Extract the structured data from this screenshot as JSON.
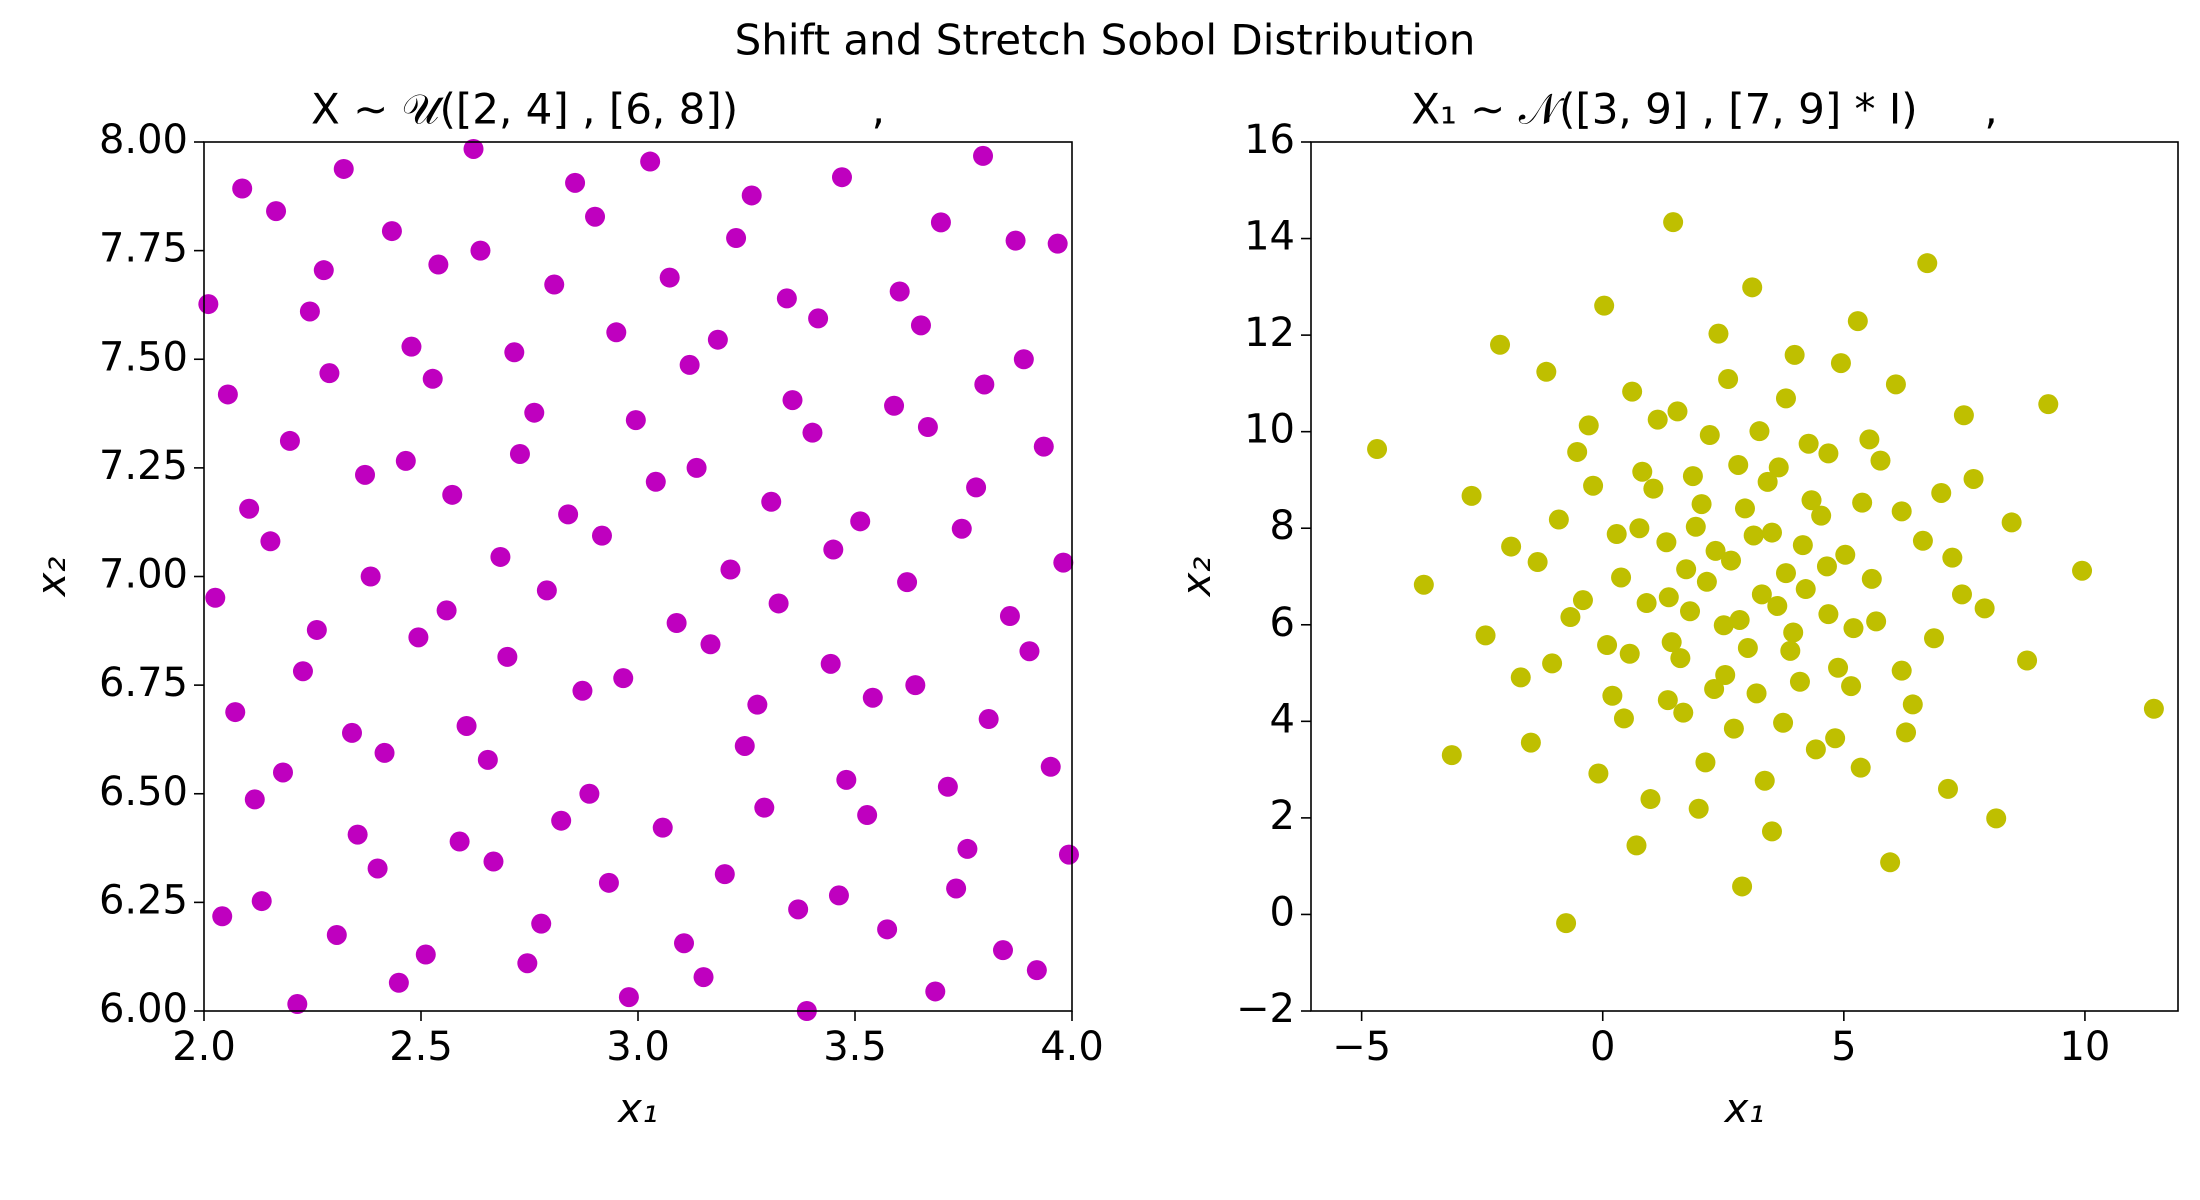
{
  "title": "Shift and Stretch Sobol Distribution",
  "chart_data": [
    {
      "type": "scatter",
      "title": "X ∼ 𝒰([2, 4] , [6, 8])          ,",
      "xlabel": "x₁",
      "ylabel": "x₂",
      "color": "#bf00bf",
      "xlim": [
        2.0,
        4.0
      ],
      "ylim": [
        6.0,
        8.0
      ],
      "xticks": [
        {
          "value": 2.0,
          "label": "2.0"
        },
        2.5,
        {
          "value": 3.0,
          "label": "3.0"
        },
        3.5,
        {
          "value": 4.0,
          "label": "4.0"
        }
      ],
      "yticks": [
        {
          "value": 6.0,
          "label": "6.00"
        },
        6.25,
        {
          "value": 6.5,
          "label": "6.50"
        },
        6.75,
        {
          "value": 7.0,
          "label": "7.00"
        },
        7.25,
        {
          "value": 7.5,
          "label": "7.50"
        },
        7.75,
        {
          "value": 8.0,
          "label": "8.00"
        }
      ],
      "x": [
        2.01,
        2.088,
        2.166,
        2.322,
        2.621,
        2.855,
        3.028,
        3.262,
        3.47,
        3.795,
        3.698,
        2.901,
        2.276,
        2.433,
        2.54,
        2.637,
        2.807,
        3.073,
        3.226,
        3.87,
        3.967,
        2.055,
        2.244,
        2.289,
        2.478,
        2.527,
        2.715,
        2.95,
        3.119,
        3.184,
        3.343,
        3.415,
        3.603,
        3.652,
        3.798,
        3.889,
        2.198,
        2.371,
        2.465,
        2.572,
        2.761,
        2.728,
        2.995,
        3.041,
        3.135,
        3.307,
        3.356,
        3.402,
        3.59,
        3.668,
        3.935,
        2.104,
        2.153,
        2.384,
        2.683,
        2.839,
        2.917,
        2.79,
        3.089,
        3.213,
        3.45,
        3.512,
        3.746,
        3.779,
        3.98,
        2.026,
        2.072,
        2.228,
        2.26,
        2.494,
        2.559,
        2.699,
        2.872,
        2.966,
        3.167,
        3.324,
        3.444,
        3.541,
        3.62,
        3.639,
        3.857,
        3.902,
        3.808,
        3.951,
        2.117,
        2.182,
        2.341,
        2.416,
        2.605,
        2.654,
        2.823,
        2.888,
        3.057,
        3.246,
        3.275,
        3.291,
        3.48,
        3.528,
        3.714,
        3.759,
        2.042,
        2.133,
        2.306,
        2.354,
        2.4,
        2.511,
        2.589,
        2.667,
        2.777,
        2.745,
        2.933,
        2.979,
        3.106,
        3.151,
        3.2,
        3.369,
        3.389,
        3.463,
        3.574,
        3.685,
        3.733,
        3.841,
        3.919,
        3.993,
        2.215,
        2.449
      ],
      "values": [
        7.627,
        7.893,
        7.841,
        7.938,
        7.984,
        7.906,
        7.955,
        7.877,
        7.919,
        7.968,
        7.815,
        7.828,
        7.705,
        7.795,
        7.718,
        7.75,
        7.672,
        7.688,
        7.779,
        7.773,
        7.766,
        7.419,
        7.61,
        7.468,
        7.529,
        7.455,
        7.516,
        7.562,
        7.487,
        7.545,
        7.64,
        7.594,
        7.656,
        7.578,
        7.442,
        7.5,
        7.312,
        7.234,
        7.266,
        7.188,
        7.377,
        7.282,
        7.36,
        7.218,
        7.25,
        7.172,
        7.406,
        7.331,
        7.393,
        7.344,
        7.299,
        7.156,
        7.081,
        7.0,
        7.045,
        7.143,
        7.094,
        6.968,
        6.893,
        7.016,
        7.062,
        7.127,
        7.11,
        7.205,
        7.032,
        6.951,
        6.688,
        6.782,
        6.877,
        6.86,
        6.922,
        6.815,
        6.737,
        6.766,
        6.844,
        6.938,
        6.799,
        6.721,
        6.987,
        6.75,
        6.909,
        6.828,
        6.672,
        6.562,
        6.487,
        6.549,
        6.64,
        6.594,
        6.656,
        6.578,
        6.438,
        6.5,
        6.422,
        6.61,
        6.705,
        6.468,
        6.532,
        6.451,
        6.516,
        6.373,
        6.218,
        6.253,
        6.175,
        6.406,
        6.328,
        6.13,
        6.39,
        6.344,
        6.201,
        6.11,
        6.295,
        6.032,
        6.156,
        6.078,
        6.315,
        6.234,
        6.0,
        6.266,
        6.188,
        6.045,
        6.282,
        6.14,
        6.094,
        6.36,
        6.016,
        6.065
      ]
    },
    {
      "type": "scatter",
      "title": "X₁ ∼ 𝒩([3, 9] , [7, 9] * I)     ,",
      "xlabel": "x₁",
      "ylabel": "x₂",
      "color": "#bfbf00",
      "xlim": [
        -6.05,
        11.93
      ],
      "ylim": [
        -2,
        16
      ],
      "xticks": [
        {
          "value": -5,
          "label": "−5"
        },
        0,
        5,
        10
      ],
      "yticks": [
        {
          "value": -2,
          "label": "−2"
        },
        0,
        2,
        4,
        6,
        8,
        10,
        12,
        14,
        16
      ],
      "x": [
        1.46,
        3.1,
        6.73,
        0.03,
        -2.13,
        -1.17,
        2.4,
        5.29,
        6.08,
        4.94,
        3.98,
        2.6,
        0.61,
        1.55,
        1.14,
        3.8,
        -0.29,
        7.49,
        9.24,
        -4.68,
        -0.53,
        2.22,
        3.25,
        0.82,
        4.68,
        5.53,
        5.76,
        4.27,
        3.65,
        2.81,
        3.42,
        1.87,
        -2.72,
        -0.2,
        1.05,
        6.2,
        7.02,
        7.69,
        -0.91,
        0.29,
        0.76,
        2.05,
        2.95,
        4.33,
        4.53,
        5.38,
        8.48,
        -1.9,
        -1.35,
        1.32,
        1.93,
        3.13,
        3.51,
        4.15,
        2.34,
        2.66,
        4.65,
        5.03,
        6.64,
        7.25,
        9.94,
        -3.71,
        0.38,
        1.73,
        2.16,
        3.8,
        4.21,
        5.58,
        7.45,
        -0.41,
        -0.67,
        0.91,
        1.37,
        3.3,
        3.62,
        1.81,
        2.51,
        2.84,
        4.68,
        5.2,
        5.67,
        7.92,
        -2.43,
        0.09,
        0.56,
        1.43,
        1.61,
        3.01,
        3.95,
        3.89,
        4.88,
        6.2,
        6.87,
        8.8,
        -1.05,
        -1.7,
        2.54,
        2.31,
        3.19,
        4.09,
        5.15,
        0.2,
        1.35,
        1.67,
        0.44,
        3.74,
        6.43,
        11.43,
        6.29,
        2.72,
        4.82,
        4.42,
        -1.49,
        -3.13,
        2.13,
        5.35,
        -0.09,
        3.36,
        7.16,
        0.99,
        1.99,
        3.51,
        8.16,
        0.7,
        5.96,
        2.89,
        -0.76
      ],
      "values": [
        14.34,
        12.99,
        13.49,
        12.61,
        11.8,
        11.24,
        12.03,
        12.29,
        10.98,
        11.42,
        11.59,
        11.09,
        10.83,
        10.42,
        10.25,
        10.69,
        10.13,
        10.34,
        10.57,
        9.64,
        9.58,
        9.93,
        10.01,
        9.17,
        9.55,
        9.84,
        9.4,
        9.75,
        9.26,
        9.31,
        8.96,
        9.08,
        8.67,
        8.88,
        8.82,
        8.35,
        8.73,
        9.02,
        8.18,
        7.88,
        8.0,
        8.5,
        8.41,
        8.58,
        8.26,
        8.53,
        8.12,
        7.62,
        7.3,
        7.71,
        8.03,
        7.85,
        7.91,
        7.65,
        7.53,
        7.33,
        7.21,
        7.45,
        7.74,
        7.39,
        7.12,
        6.83,
        6.98,
        7.15,
        6.89,
        7.07,
        6.74,
        6.95,
        6.63,
        6.51,
        6.16,
        6.45,
        6.57,
        6.63,
        6.39,
        6.28,
        5.99,
        6.1,
        6.22,
        5.93,
        6.07,
        6.34,
        5.78,
        5.58,
        5.4,
        5.64,
        5.31,
        5.52,
        5.84,
        5.46,
        5.11,
        5.05,
        5.72,
        5.26,
        5.2,
        4.91,
        4.96,
        4.67,
        4.58,
        4.82,
        4.73,
        4.53,
        4.44,
        4.18,
        4.06,
        3.97,
        4.35,
        4.26,
        3.77,
        3.85,
        3.65,
        3.42,
        3.56,
        3.3,
        3.15,
        3.04,
        2.92,
        2.77,
        2.6,
        2.39,
        2.19,
        1.72,
        1.99,
        1.43,
        1.08,
        0.58,
        -0.18
      ]
    }
  ]
}
